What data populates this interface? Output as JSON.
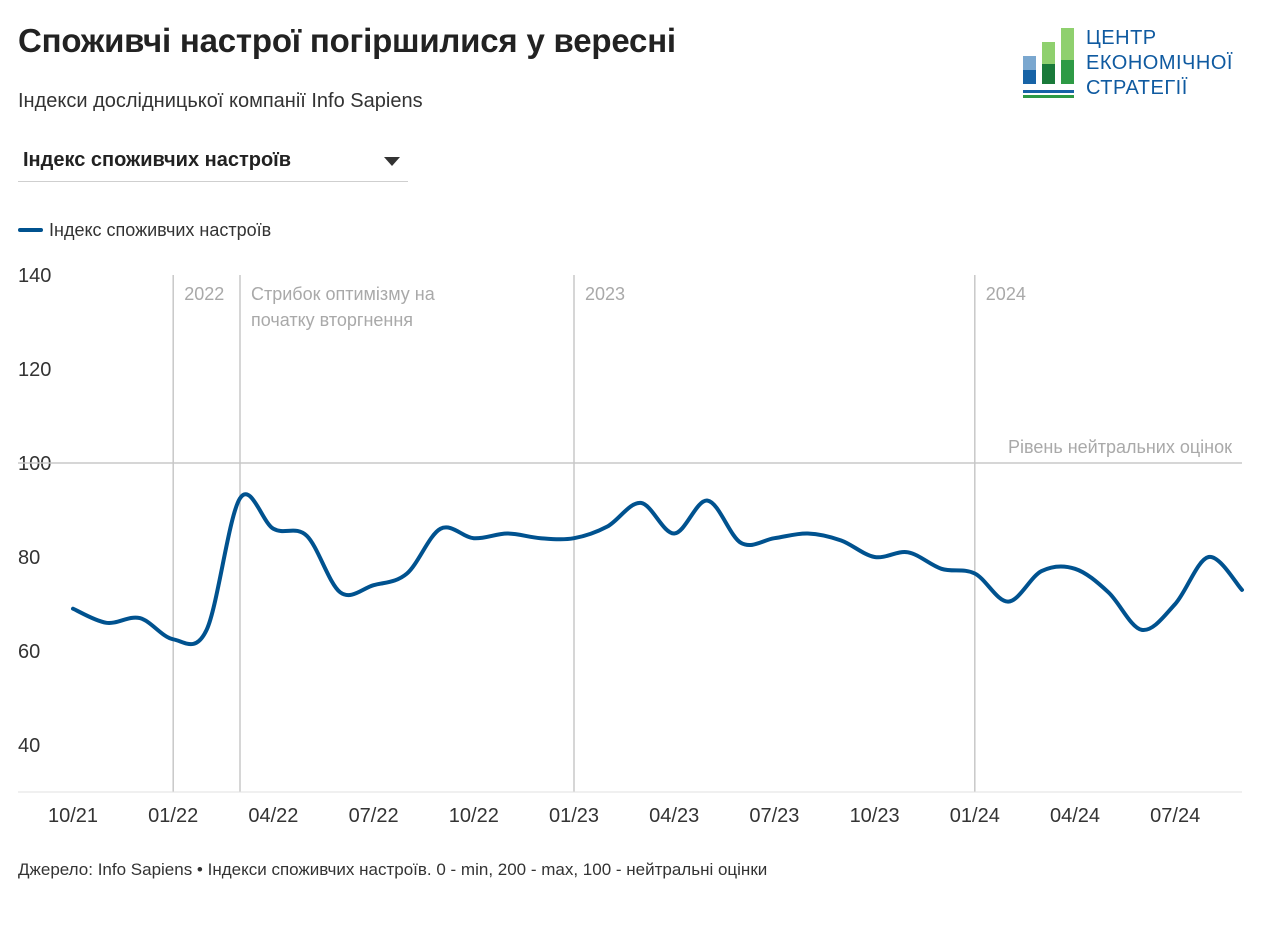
{
  "title": "Споживчі настрої погіршилися у вересні",
  "subtitle": "Індекси дослідницької компанії Info Sapiens",
  "dropdown": {
    "selected": "Індекс споживчих настроїв"
  },
  "legend": {
    "label": "Індекс споживчих настроїв",
    "color": "#00528f"
  },
  "logo": {
    "lines": [
      "ЦЕНТР",
      "ЕКОНОМІЧНОЇ",
      "СТРАТЕГІЇ"
    ]
  },
  "footer": "Джерело: Info Sapiens • Індекси споживчих настроїв. 0 - min, 200 - max, 100 - нейтральні оцінки",
  "chart_data": {
    "type": "line",
    "title": "Споживчі настрої погіршилися у вересні",
    "subtitle": "Індекси дослідницької компанії Info Sapiens",
    "xlabel": "",
    "ylabel": "",
    "ylim": [
      30,
      140
    ],
    "yticks": [
      40,
      60,
      80,
      100,
      120,
      140
    ],
    "xticks": [
      "10/21",
      "01/22",
      "04/22",
      "07/22",
      "10/22",
      "01/23",
      "04/23",
      "07/23",
      "10/23",
      "01/24",
      "04/24",
      "07/24"
    ],
    "grid": false,
    "legend_position": "top-left",
    "reference_line": {
      "value": 100,
      "label": "Рівень нейтральних оцінок"
    },
    "vertical_lines": [
      {
        "at": "2022-01",
        "label": "2022"
      },
      {
        "at": "2022-03",
        "label": "Стрибок оптимізму на початку вторгнення"
      },
      {
        "at": "2023-01",
        "label": "2023"
      },
      {
        "at": "2024-01",
        "label": "2024"
      }
    ],
    "series": [
      {
        "name": "Індекс споживчих настроїв",
        "color": "#00528f",
        "x": [
          "2021-10",
          "2021-11",
          "2021-12",
          "2022-01",
          "2022-02",
          "2022-03",
          "2022-04",
          "2022-05",
          "2022-06",
          "2022-07",
          "2022-08",
          "2022-09",
          "2022-10",
          "2022-11",
          "2022-12",
          "2023-01",
          "2023-02",
          "2023-03",
          "2023-04",
          "2023-05",
          "2023-06",
          "2023-07",
          "2023-08",
          "2023-09",
          "2023-10",
          "2023-11",
          "2023-12",
          "2024-01",
          "2024-02",
          "2024-03",
          "2024-04",
          "2024-05",
          "2024-06",
          "2024-07",
          "2024-08",
          "2024-09"
        ],
        "values": [
          69,
          66,
          67,
          62.5,
          64.5,
          92.5,
          86,
          84.5,
          72.5,
          74,
          76.5,
          86,
          84,
          85,
          84,
          84,
          86.5,
          91.5,
          85,
          92,
          83,
          84,
          85,
          83.5,
          80,
          81,
          77.5,
          76.5,
          70.5,
          77,
          77.5,
          72.5,
          64.5,
          70,
          80,
          73
        ]
      }
    ]
  }
}
